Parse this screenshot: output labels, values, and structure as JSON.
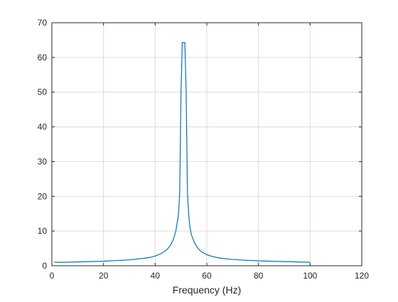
{
  "chart_data": {
    "type": "line",
    "title": "",
    "xlabel": "Frequency (Hz)",
    "ylabel": "",
    "xlim": [
      0,
      120
    ],
    "ylim": [
      0,
      70
    ],
    "xticks": [
      0,
      20,
      40,
      60,
      80,
      100,
      120
    ],
    "yticks": [
      0,
      10,
      20,
      30,
      40,
      50,
      60,
      70
    ],
    "xtick_labels": [
      "0",
      "20",
      "40",
      "60",
      "80",
      "100",
      "120"
    ],
    "ytick_labels": [
      "0",
      "10",
      "20",
      "30",
      "40",
      "50",
      "60",
      "70"
    ],
    "grid": true,
    "series": [
      {
        "color": "#0072BD",
        "x": [
          1,
          5,
          10,
          15,
          20,
          25,
          30,
          35,
          38,
          40,
          42,
          44,
          45,
          46,
          47,
          48,
          49,
          49.5,
          50,
          50.5,
          51,
          51.5,
          52,
          52.5,
          53,
          53.5,
          54,
          55,
          56,
          57,
          58,
          60,
          62,
          65,
          70,
          75,
          80,
          85,
          90,
          95,
          100
        ],
        "values": [
          1.0,
          1.0,
          1.1,
          1.2,
          1.3,
          1.5,
          1.7,
          2.1,
          2.4,
          2.8,
          3.4,
          4.3,
          5.0,
          6.0,
          7.5,
          10.0,
          14.5,
          21.0,
          50.0,
          64.3,
          64.3,
          64.3,
          50.0,
          21.0,
          14.5,
          11.0,
          9.0,
          7.0,
          5.6,
          4.7,
          4.0,
          3.2,
          2.7,
          2.2,
          1.8,
          1.6,
          1.4,
          1.3,
          1.2,
          1.1,
          1.0
        ]
      }
    ]
  }
}
